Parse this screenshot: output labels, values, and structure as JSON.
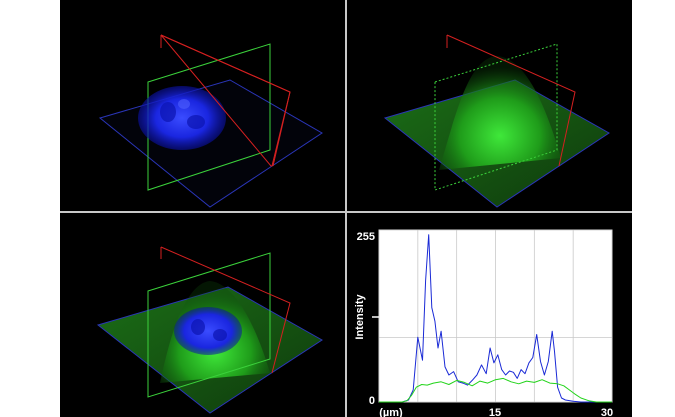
{
  "figure": {
    "panels": [
      "dapi-channel-3d",
      "green-channel-3d",
      "merged-3d",
      "intensity-profile"
    ]
  },
  "plot": {
    "ylabel": "Intensity",
    "y_max_label": "255",
    "y_min_label": "0",
    "x_tick_labels": [
      "(µm)",
      "15",
      "30"
    ],
    "colors": {
      "blue_series": "#1a2ad6",
      "green_series": "#22d41a",
      "grid": "#c9c9c9"
    }
  },
  "chart_data": {
    "type": "line",
    "xlabel": "",
    "ylabel": "Intensity",
    "xlim": [
      0,
      30
    ],
    "ylim": [
      0,
      255
    ],
    "series": [
      {
        "color": "#1a2ad6",
        "x": [
          0,
          1,
          2,
          3,
          3.8,
          4.4,
          5,
          5.6,
          6,
          6.4,
          6.8,
          7.2,
          7.6,
          8,
          8.5,
          9,
          9.6,
          10.2,
          10.8,
          11.4,
          12,
          12.6,
          13.2,
          13.8,
          14.3,
          14.8,
          15.3,
          15.8,
          16.3,
          16.8,
          17.3,
          17.8,
          18.3,
          18.8,
          19.3,
          19.8,
          20.3,
          20.8,
          21.3,
          21.8,
          22.3,
          22.6,
          23,
          23.5,
          24,
          25,
          26,
          27,
          28,
          29,
          30
        ],
        "values": [
          0,
          0,
          0,
          0,
          3,
          18,
          96,
          62,
          180,
          248,
          140,
          120,
          80,
          105,
          52,
          40,
          45,
          30,
          28,
          25,
          32,
          40,
          55,
          42,
          80,
          58,
          70,
          48,
          40,
          46,
          44,
          35,
          48,
          42,
          58,
          66,
          100,
          60,
          40,
          60,
          105,
          75,
          22,
          6,
          3,
          1,
          0,
          0,
          0,
          0,
          0
        ]
      },
      {
        "color": "#22d41a",
        "x": [
          0,
          1,
          2,
          3,
          3.6,
          4.2,
          4.8,
          5.5,
          6.2,
          7,
          8,
          9,
          10,
          11,
          12,
          13,
          14,
          15,
          16,
          17,
          18,
          19,
          20,
          21,
          22,
          23,
          23.8,
          24.5,
          25.2,
          26,
          27,
          28,
          29,
          30
        ],
        "values": [
          0,
          0,
          0,
          0,
          2,
          10,
          22,
          26,
          25,
          28,
          30,
          26,
          32,
          29,
          24,
          31,
          28,
          33,
          35,
          30,
          27,
          31,
          29,
          33,
          28,
          27,
          24,
          18,
          12,
          6,
          2,
          0,
          0,
          0
        ]
      }
    ]
  }
}
